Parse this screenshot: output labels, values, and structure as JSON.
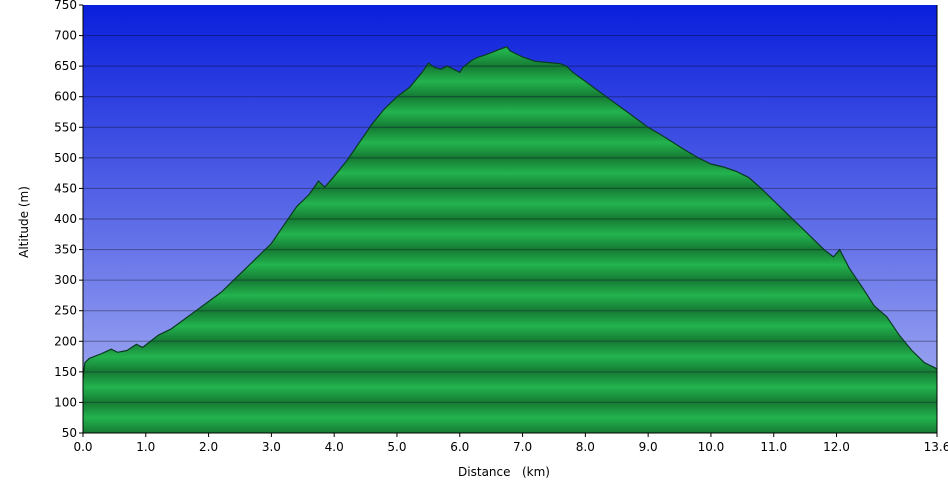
{
  "chart_data": {
    "type": "area",
    "title": "",
    "xlabel": "Distance   (km)",
    "ylabel": "Altitude (m)",
    "xlim": [
      0,
      13.6
    ],
    "ylim": [
      50,
      750
    ],
    "grid": true,
    "x_ticks": [
      {
        "value": 0.0,
        "label": "0.0"
      },
      {
        "value": 1.0,
        "label": "1.0"
      },
      {
        "value": 2.0,
        "label": "2.0"
      },
      {
        "value": 3.0,
        "label": "3.0"
      },
      {
        "value": 4.0,
        "label": "4.0"
      },
      {
        "value": 5.0,
        "label": "5.0"
      },
      {
        "value": 6.0,
        "label": "6.0"
      },
      {
        "value": 7.0,
        "label": "7.0"
      },
      {
        "value": 8.0,
        "label": "8.0"
      },
      {
        "value": 9.0,
        "label": "9.0"
      },
      {
        "value": 10.0,
        "label": "10.0"
      },
      {
        "value": 11.0,
        "label": "11.0"
      },
      {
        "value": 12.0,
        "label": "12.0"
      },
      {
        "value": 13.6,
        "label": "13.6"
      }
    ],
    "y_ticks": [
      {
        "value": 50,
        "label": "50"
      },
      {
        "value": 100,
        "label": "100"
      },
      {
        "value": 150,
        "label": "150"
      },
      {
        "value": 200,
        "label": "200"
      },
      {
        "value": 250,
        "label": "250"
      },
      {
        "value": 300,
        "label": "300"
      },
      {
        "value": 350,
        "label": "350"
      },
      {
        "value": 400,
        "label": "400"
      },
      {
        "value": 450,
        "label": "450"
      },
      {
        "value": 500,
        "label": "500"
      },
      {
        "value": 550,
        "label": "550"
      },
      {
        "value": 600,
        "label": "600"
      },
      {
        "value": 650,
        "label": "650"
      },
      {
        "value": 700,
        "label": "700"
      },
      {
        "value": 750,
        "label": "750"
      }
    ],
    "series": [
      {
        "x": [
          0,
          0.03,
          0.1,
          0.3,
          0.45,
          0.55,
          0.7,
          0.85,
          0.95,
          1.05,
          1.2,
          1.4,
          1.6,
          1.8,
          2.0,
          2.2,
          2.4,
          2.6,
          2.8,
          3.0,
          3.2,
          3.4,
          3.6,
          3.75,
          3.85,
          4.0,
          4.2,
          4.4,
          4.6,
          4.8,
          5.0,
          5.2,
          5.4,
          5.5,
          5.6,
          5.7,
          5.8,
          5.9,
          6.0,
          6.05,
          6.1,
          6.2,
          6.3,
          6.4,
          6.5,
          6.6,
          6.7,
          6.75,
          6.8,
          7.0,
          7.2,
          7.4,
          7.6,
          7.7,
          7.8,
          8.0,
          8.2,
          8.4,
          8.6,
          8.8,
          9.0,
          9.2,
          9.4,
          9.6,
          9.8,
          10.0,
          10.2,
          10.4,
          10.6,
          10.8,
          11.0,
          11.2,
          11.4,
          11.6,
          11.8,
          11.95,
          12.05,
          12.2,
          12.4,
          12.6,
          12.8,
          13.0,
          13.2,
          13.4,
          13.6
        ],
        "values": [
          140,
          165,
          172,
          180,
          187,
          182,
          185,
          195,
          190,
          198,
          210,
          220,
          235,
          250,
          265,
          280,
          300,
          320,
          340,
          360,
          390,
          420,
          440,
          462,
          452,
          470,
          495,
          525,
          555,
          580,
          600,
          615,
          640,
          655,
          648,
          645,
          650,
          645,
          640,
          648,
          652,
          660,
          665,
          668,
          672,
          676,
          680,
          682,
          675,
          665,
          658,
          656,
          654,
          650,
          640,
          625,
          610,
          595,
          580,
          565,
          550,
          538,
          525,
          512,
          500,
          490,
          485,
          478,
          468,
          450,
          430,
          410,
          390,
          370,
          350,
          338,
          350,
          320,
          290,
          258,
          240,
          210,
          185,
          165,
          155
        ]
      }
    ],
    "colors": {
      "plot_bg_top": "#0a1fdc",
      "plot_bg_bottom": "#aeb6f3",
      "fill_band_light": "#23b34e",
      "fill_band_dark": "#157a33",
      "outline": "#0b3a22",
      "grid": "#000000",
      "axis": "#000000"
    }
  }
}
